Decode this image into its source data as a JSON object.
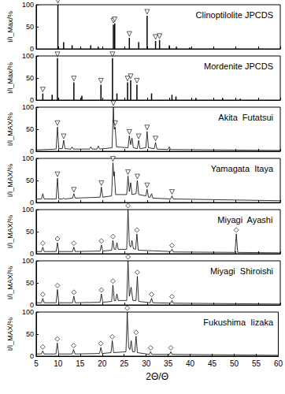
{
  "chart_data": [
    {
      "type": "bar",
      "title": "Clinoptilolite JPCDS",
      "y_label": "I/I_Max/%",
      "color": "#000000",
      "xlim": [
        5,
        60
      ],
      "xticks": [
        5,
        10,
        15,
        20,
        25,
        30,
        35,
        40,
        45,
        50,
        55,
        60
      ],
      "ylim": [
        0,
        100
      ],
      "yticks": [
        0,
        50,
        100
      ],
      "grid": false,
      "tick_labels": "y",
      "series": [
        {
          "type": "bar",
          "x": [
            9.9,
            11.2,
            13.1,
            17.3,
            19.0,
            22.4,
            22.7,
            26.0,
            28.1,
            30.0,
            31.9,
            32.8,
            35.0,
            36.6,
            39.6
          ],
          "values": [
            100,
            15,
            8,
            8,
            5,
            55,
            58,
            25,
            15,
            75,
            18,
            20,
            8,
            5,
            3
          ]
        },
        {
          "type": "scatter",
          "marker": "triangle",
          "x": [
            9.9,
            22.4,
            22.7,
            26.0,
            30.0,
            31.9,
            32.8
          ],
          "values": [
            100,
            55,
            58,
            25,
            75,
            18,
            20
          ]
        }
      ]
    },
    {
      "type": "bar",
      "title": "Mordenite JPCDS",
      "y_label": "I/I_Max/%",
      "color": "#000000",
      "xlim": [
        5,
        60
      ],
      "xticks": [
        5,
        10,
        15,
        20,
        25,
        30,
        35,
        40,
        45,
        50,
        55,
        60
      ],
      "ylim": [
        0,
        100
      ],
      "yticks": [
        0,
        50,
        100
      ],
      "grid": false,
      "tick_labels": "y",
      "series": [
        {
          "type": "bar",
          "x": [
            6.5,
            8.6,
            9.8,
            13.5,
            15.3,
            19.6,
            22.2,
            23.2,
            25.6,
            26.3,
            27.7,
            31.0,
            35.6,
            36.5,
            41.0,
            47.0,
            51.0
          ],
          "values": [
            15,
            12,
            95,
            40,
            10,
            35,
            95,
            15,
            40,
            45,
            35,
            15,
            12,
            8,
            5,
            5,
            3
          ]
        },
        {
          "type": "scatter",
          "marker": "triangle",
          "x": [
            6.5,
            9.8,
            13.5,
            19.6,
            22.2,
            25.6,
            26.3,
            27.7
          ],
          "values": [
            15,
            95,
            40,
            35,
            95,
            40,
            45,
            35
          ]
        }
      ]
    },
    {
      "type": "line",
      "title": "Akita  Futatsui",
      "y_label": "I/I_MAX/%",
      "color": "#000000",
      "xlim": [
        5,
        60
      ],
      "xticks": [
        5,
        10,
        15,
        20,
        25,
        30,
        35,
        40,
        45,
        50,
        55,
        60
      ],
      "ylim": [
        0,
        100
      ],
      "yticks": [
        0,
        50,
        100
      ],
      "grid": false,
      "tick_labels": "y",
      "series": [
        {
          "type": "line",
          "x": [
            5,
            9.5,
            9.8,
            10.1,
            10.9,
            11.2,
            11.5,
            12.8,
            13.1,
            13.4,
            17.0,
            17.3,
            17.6,
            18.7,
            19.0,
            19.3,
            22.1,
            22.4,
            22.6,
            22.8,
            23.1,
            25.7,
            26.0,
            26.3,
            26.6,
            26.9,
            27.8,
            28.1,
            28.4,
            29.7,
            30.0,
            30.3,
            31.6,
            31.9,
            32.2,
            34.7,
            35.0,
            35.3,
            60
          ],
          "values": [
            3,
            5,
            55,
            6,
            6,
            25,
            6,
            5,
            10,
            5,
            5,
            10,
            5,
            5,
            12,
            5,
            8,
            100,
            50,
            55,
            10,
            8,
            35,
            15,
            30,
            8,
            6,
            25,
            6,
            8,
            45,
            8,
            6,
            20,
            5,
            4,
            10,
            4,
            2
          ]
        },
        {
          "type": "scatter",
          "marker": "triangle",
          "x": [
            9.8,
            11.2,
            22.4,
            22.8,
            26.0,
            28.1,
            30.0,
            31.9
          ],
          "values": [
            55,
            25,
            100,
            55,
            35,
            25,
            45,
            20
          ]
        }
      ]
    },
    {
      "type": "line",
      "title": "Yamagata  Itaya",
      "y_label": "I/I_MAX/%",
      "color": "#000000",
      "xlim": [
        5,
        60
      ],
      "xticks": [
        5,
        10,
        15,
        20,
        25,
        30,
        35,
        40,
        45,
        50,
        55,
        60
      ],
      "ylim": [
        0,
        100
      ],
      "yticks": [
        0,
        50,
        100
      ],
      "grid": false,
      "tick_labels": "y",
      "series": [
        {
          "type": "line",
          "x": [
            5,
            6.2,
            6.5,
            6.8,
            9.5,
            9.8,
            10.1,
            10.9,
            11.2,
            11.5,
            13.2,
            13.5,
            13.8,
            19.4,
            19.7,
            20.0,
            22.0,
            22.3,
            22.5,
            22.6,
            22.9,
            25.4,
            25.7,
            26.0,
            26.3,
            26.6,
            27.5,
            27.8,
            28.1,
            29.7,
            30.0,
            30.3,
            30.7,
            31.0,
            31.3,
            35.3,
            35.6,
            35.9,
            60
          ],
          "values": [
            8,
            8,
            20,
            8,
            8,
            55,
            8,
            8,
            10,
            8,
            10,
            20,
            10,
            12,
            35,
            12,
            15,
            90,
            60,
            70,
            18,
            18,
            60,
            25,
            45,
            18,
            20,
            50,
            18,
            15,
            30,
            12,
            12,
            20,
            10,
            8,
            15,
            8,
            4
          ]
        },
        {
          "type": "scatter",
          "marker": "triangle",
          "x": [
            9.8,
            13.5,
            19.7,
            22.3,
            25.7,
            27.8,
            30.0,
            35.6
          ],
          "values": [
            55,
            20,
            35,
            90,
            60,
            50,
            30,
            15
          ]
        }
      ]
    },
    {
      "type": "line",
      "title": "Miyagi  Ayashi",
      "y_label": "I/I_MAX/%",
      "color": "#000000",
      "xlim": [
        5,
        60
      ],
      "xticks": [
        5,
        10,
        15,
        20,
        25,
        30,
        35,
        40,
        45,
        50,
        55,
        60
      ],
      "ylim": [
        0,
        100
      ],
      "yticks": [
        0,
        50,
        100
      ],
      "grid": false,
      "tick_labels": "y",
      "series": [
        {
          "type": "line",
          "x": [
            5,
            6.2,
            6.5,
            6.8,
            9.5,
            9.8,
            10.1,
            13.2,
            13.5,
            13.8,
            19.4,
            19.7,
            20.0,
            22.0,
            22.3,
            22.6,
            22.9,
            23.2,
            23.5,
            25.4,
            25.7,
            26.0,
            26.3,
            26.6,
            26.9,
            27.4,
            27.7,
            28.0,
            35.3,
            35.6,
            35.9,
            49.8,
            50.1,
            50.4,
            60
          ],
          "values": [
            5,
            5,
            15,
            5,
            5,
            25,
            5,
            5,
            15,
            5,
            6,
            20,
            6,
            8,
            30,
            10,
            10,
            25,
            10,
            10,
            100,
            20,
            15,
            30,
            12,
            10,
            45,
            8,
            5,
            10,
            4,
            3,
            45,
            3,
            2
          ]
        },
        {
          "type": "scatter",
          "marker": "diamond",
          "x": [
            6.5,
            9.8,
            13.5,
            19.7,
            22.3,
            25.7,
            27.7,
            35.6,
            50.1
          ],
          "values": [
            15,
            25,
            15,
            20,
            30,
            100,
            45,
            10,
            45
          ]
        }
      ]
    },
    {
      "type": "line",
      "title": "Miyagi  Shiroishi",
      "y_label": "I/I_MAX/%",
      "color": "#000000",
      "xlim": [
        5,
        60
      ],
      "xticks": [
        5,
        10,
        15,
        20,
        25,
        30,
        35,
        40,
        45,
        50,
        55,
        60
      ],
      "ylim": [
        0,
        100
      ],
      "yticks": [
        0,
        50,
        100
      ],
      "grid": false,
      "tick_labels": "y",
      "series": [
        {
          "type": "line",
          "x": [
            5,
            6.2,
            6.5,
            6.8,
            9.5,
            9.8,
            10.1,
            13.2,
            13.5,
            13.8,
            19.4,
            19.7,
            20.0,
            22.0,
            22.3,
            22.6,
            22.9,
            23.2,
            23.5,
            25.4,
            25.7,
            26.0,
            26.4,
            26.8,
            27.5,
            27.8,
            28.1,
            30.7,
            31.0,
            31.3,
            35.3,
            35.6,
            35.9,
            60
          ],
          "values": [
            5,
            5,
            15,
            5,
            5,
            35,
            5,
            5,
            20,
            5,
            6,
            25,
            6,
            8,
            45,
            10,
            10,
            25,
            10,
            10,
            100,
            20,
            40,
            10,
            10,
            65,
            8,
            5,
            15,
            5,
            4,
            10,
            4,
            2
          ]
        },
        {
          "type": "scatter",
          "marker": "diamond",
          "x": [
            6.5,
            9.8,
            13.5,
            19.7,
            22.3,
            25.7,
            27.8,
            31.0,
            35.6
          ],
          "values": [
            15,
            35,
            20,
            25,
            45,
            100,
            65,
            15,
            10
          ]
        }
      ]
    },
    {
      "type": "line",
      "title": "Fukushima  Iizaka",
      "y_label": "I/I_MAX/%",
      "x_label": "2Θ/Θ",
      "color": "#000000",
      "xlim": [
        5,
        60
      ],
      "xticks": [
        5,
        10,
        15,
        20,
        25,
        30,
        35,
        40,
        45,
        50,
        55,
        60
      ],
      "ylim": [
        0,
        100
      ],
      "yticks": [
        0,
        50,
        100
      ],
      "grid": false,
      "series": [
        {
          "type": "line",
          "x": [
            5,
            6.2,
            6.5,
            6.8,
            9.5,
            9.8,
            10.1,
            13.2,
            13.5,
            13.8,
            19.4,
            19.7,
            20.0,
            22.0,
            22.3,
            22.6,
            25.4,
            25.7,
            26.0,
            26.3,
            26.6,
            26.9,
            27.4,
            27.7,
            28.0,
            30.7,
            31.0,
            31.3,
            35.3,
            35.6,
            35.9,
            60
          ],
          "values": [
            5,
            5,
            12,
            5,
            5,
            30,
            5,
            5,
            15,
            5,
            6,
            20,
            6,
            8,
            35,
            8,
            10,
            100,
            20,
            15,
            35,
            10,
            10,
            45,
            8,
            4,
            10,
            4,
            4,
            10,
            4,
            2
          ]
        },
        {
          "type": "scatter",
          "marker": "diamond",
          "x": [
            6.5,
            9.8,
            13.5,
            19.7,
            22.3,
            25.7,
            27.7,
            31.0,
            35.6
          ],
          "values": [
            12,
            30,
            15,
            20,
            35,
            100,
            45,
            10,
            10
          ]
        }
      ]
    }
  ]
}
